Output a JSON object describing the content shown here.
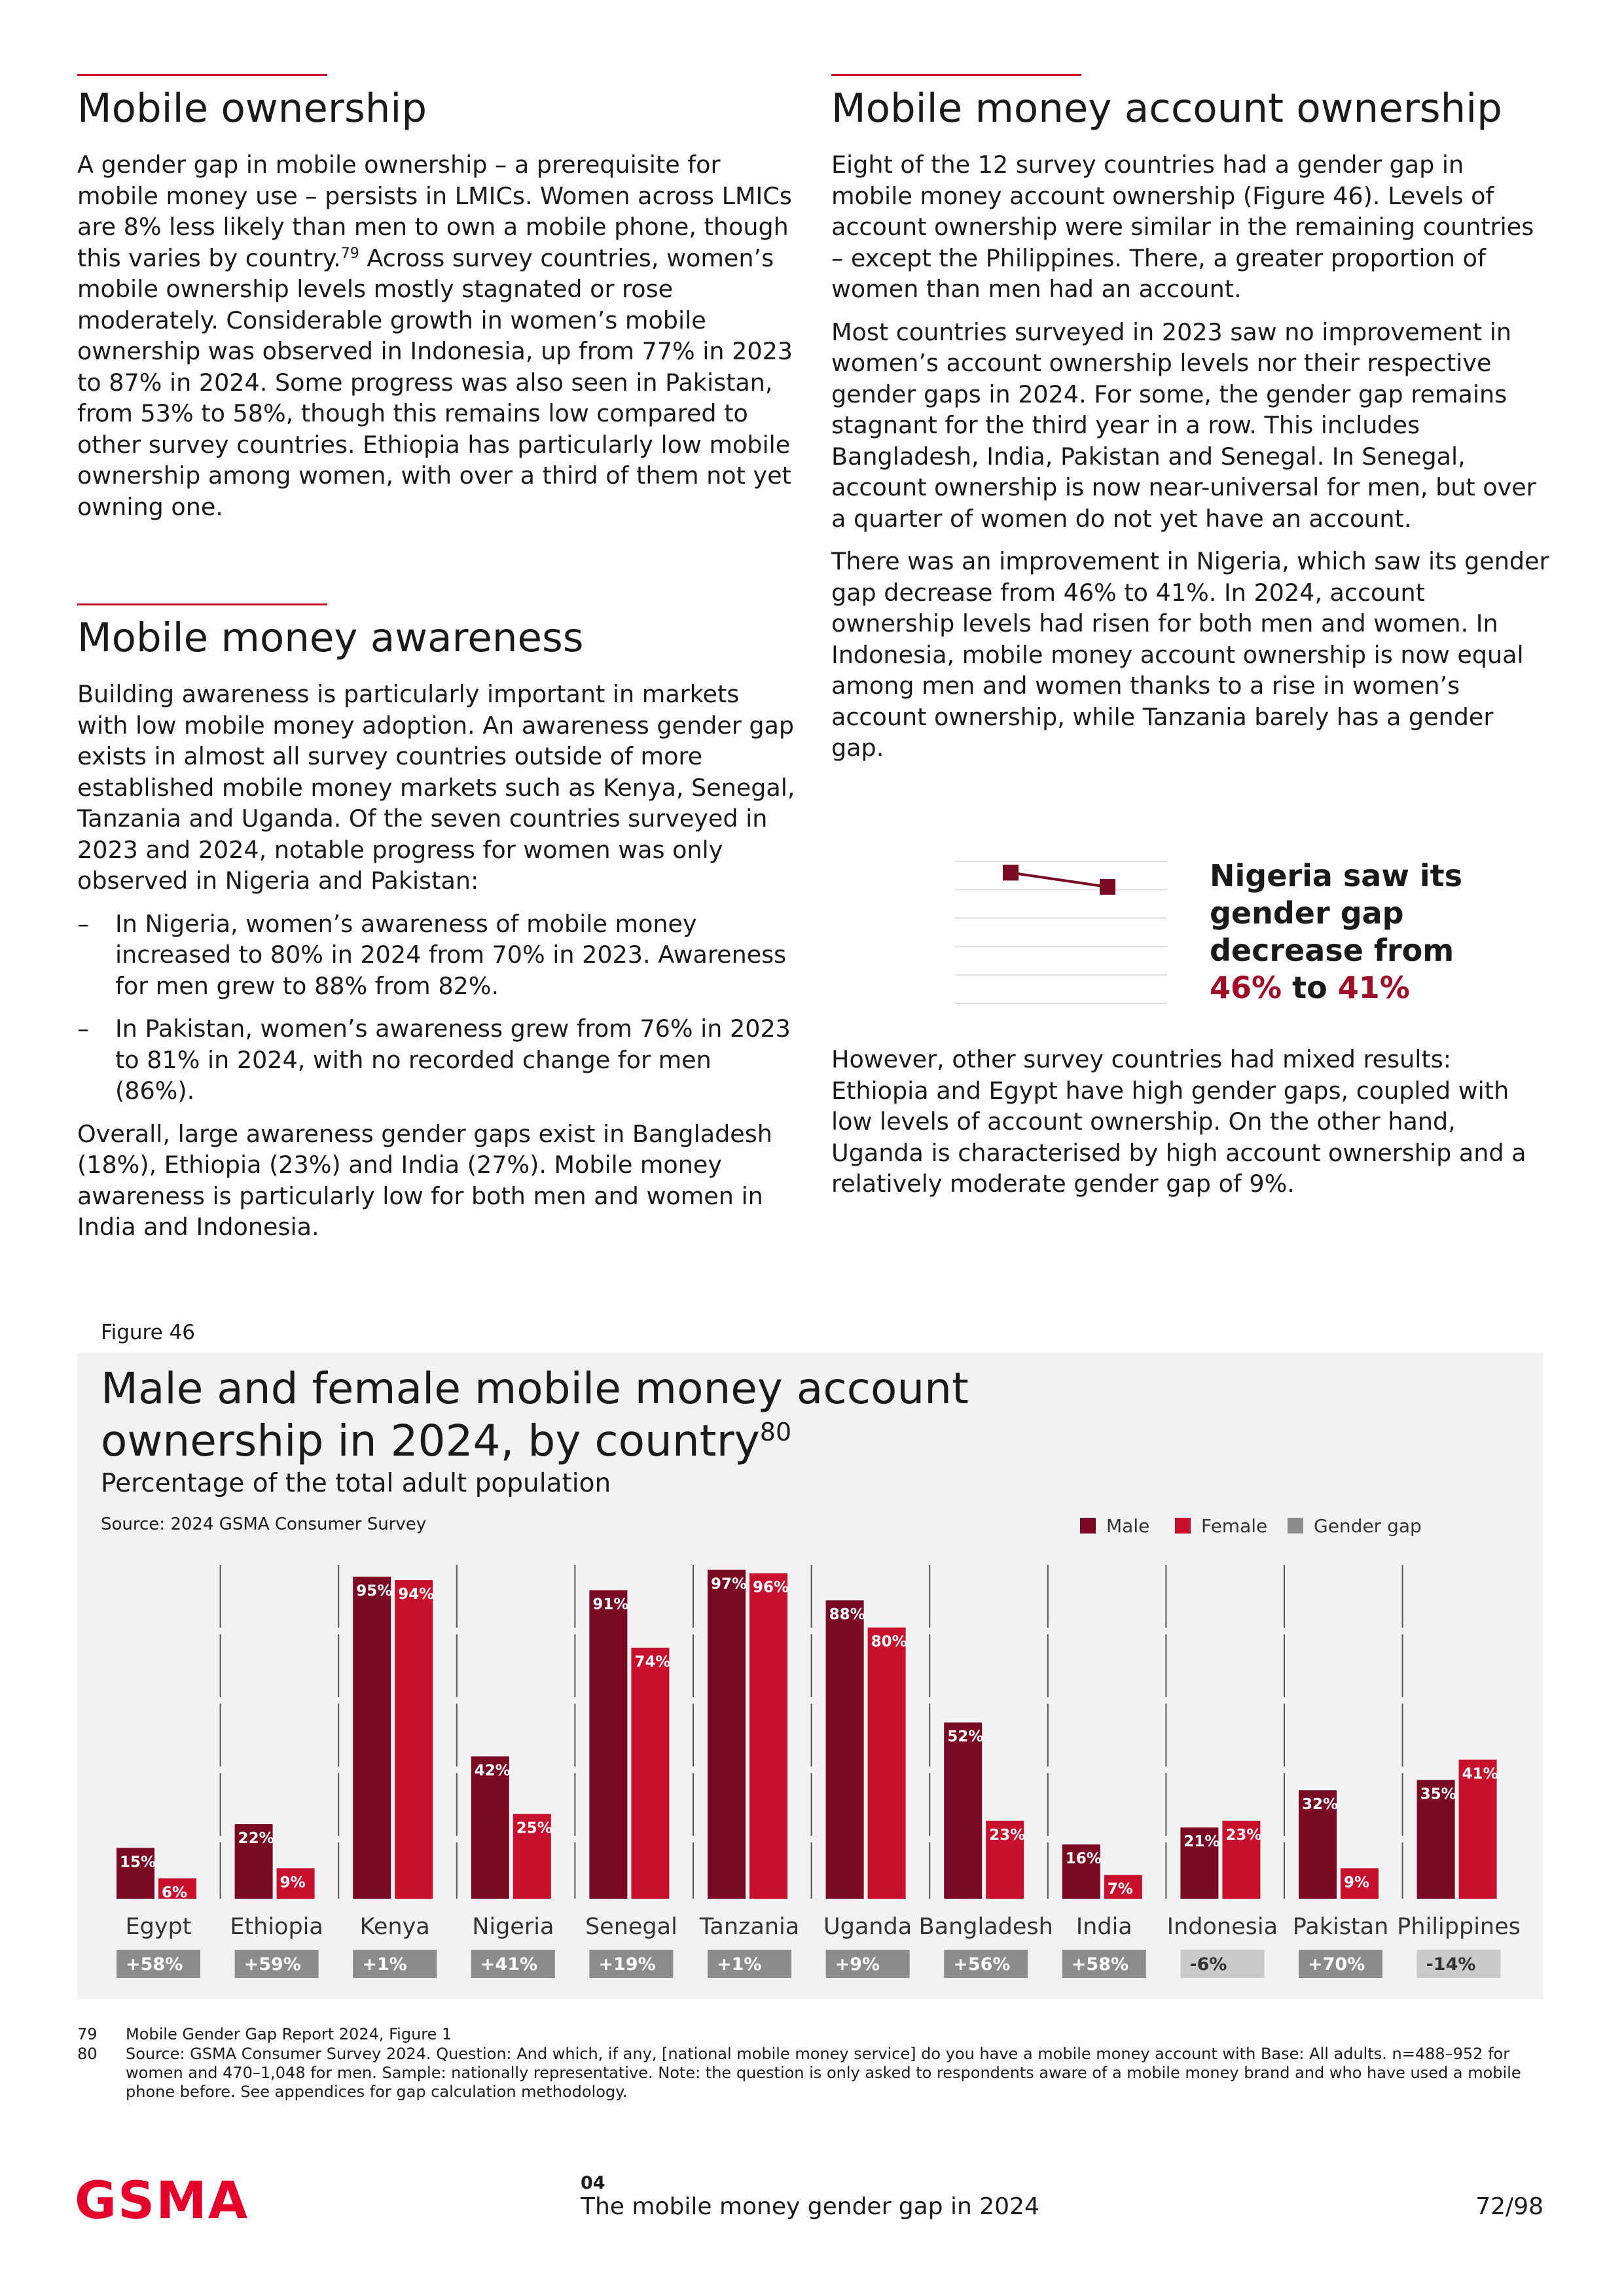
{
  "left": {
    "ownership": {
      "title": "Mobile ownership",
      "paragraph": {
        "before": "A gender gap in mobile ownership – a prerequisite for mobile money use – persists in LMICs. Women across LMICs are 8% less likely than men to own a mobile phone, though this varies by country.",
        "note": "79",
        "after": " Across survey countries, women’s mobile ownership levels mostly stagnated or rose moderately. Considerable growth in women’s mobile ownership was observed in Indonesia, up from 77% in 2023 to 87% in 2024. Some progress was also seen in Pakistan, from 53% to 58%, though this remains low compared to other survey countries. Ethiopia has particularly low mobile ownership among women, with over a third of them not yet owning one."
      }
    },
    "awareness": {
      "title": "Mobile money awareness",
      "intro": "Building awareness is particularly important in markets with low mobile money adoption. An awareness gender gap exists in almost all survey countries outside of more established mobile money markets such as Kenya, Senegal, Tanzania and Uganda. Of the seven countries surveyed in 2023 and 2024, notable progress for women was only observed in Nigeria and Pakistan:",
      "bullets": [
        "In Nigeria, women’s awareness of mobile money increased to 80% in 2024 from 70% in 2023. Awareness for men grew to 88% from 82%.",
        "In Pakistan, women’s awareness grew from 76% in 2023 to 81% in 2024, with no recorded change for men (86%)."
      ],
      "outro": "Overall, large awareness gender gaps exist in Bangladesh (18%), Ethiopia (23%) and India (27%). Mobile money awareness is particularly low for both men and women in India and Indonesia."
    }
  },
  "right": {
    "title": "Mobile money account ownership",
    "paragraphs": [
      "Eight of the 12 survey countries had a gender gap in mobile money account ownership (Figure 46). Levels of account ownership were similar in the remaining countries – except the Philippines. There, a greater proportion of women than men had an account.",
      "Most countries surveyed in 2023 saw no improvement in women’s account ownership levels nor their respective gender gaps in 2024. For some, the gender gap remains stagnant for the third year in a row. This includes Bangladesh, India, Pakistan and Senegal. In Senegal, account ownership is now near-universal for men, but over a quarter of women do not yet have an account.",
      "There was an improvement in Nigeria, which saw its gender gap decrease from 46% to 41%. In 2024, account ownership levels had risen for both men and women. In Indonesia, mobile money account ownership is now equal among men and women thanks to a rise in women’s account ownership, while Tanzania barely has a gender gap."
    ],
    "callout": {
      "text": "Nigeria saw its gender gap decrease from",
      "from": "46%",
      "joiner": "to",
      "to": "41%"
    },
    "closing": "However, other survey countries had mixed results: Ethiopia and Egypt have high gender gaps, coupled with low levels of account ownership. On the other hand, Uganda is characterised by high account ownership and a relatively moderate gender gap of 9%."
  },
  "figure_label": "Figure 46",
  "chart_data": [
    {
      "type": "bar",
      "title": "Male and female mobile money account ownership in 2024, by country",
      "title_note": "80",
      "subtitle": "Percentage of the total adult population",
      "source": "Source: 2024 GSMA Consumer Survey",
      "categories": [
        "Egypt",
        "Ethiopia",
        "Kenya",
        "Nigeria",
        "Senegal",
        "Tanzania",
        "Uganda",
        "Bangladesh",
        "India",
        "Indonesia",
        "Pakistan",
        "Philippines"
      ],
      "series": [
        {
          "name": "Male",
          "color": "#7a0a23",
          "values": [
            15,
            22,
            95,
            42,
            91,
            97,
            88,
            52,
            16,
            21,
            32,
            35
          ],
          "value_labels": [
            "15%",
            "22%",
            "95%",
            "42%",
            "91%",
            "97%",
            "88%",
            "52%",
            "16%",
            "21%",
            "32%",
            "35%"
          ]
        },
        {
          "name": "Female",
          "color": "#c8102e",
          "values": [
            6,
            9,
            94,
            25,
            74,
            96,
            80,
            23,
            7,
            23,
            9,
            41
          ],
          "value_labels": [
            "6%",
            "9%",
            "94%",
            "25%",
            "74%",
            "96%",
            "80%",
            "23%",
            "7%",
            "23%",
            "9%",
            "41%"
          ]
        },
        {
          "name": "Gender gap",
          "color": "#8c8c8c",
          "negative_color": "#c9cbca",
          "values": [
            58,
            59,
            1,
            41,
            19,
            1,
            9,
            56,
            58,
            -6,
            70,
            -14
          ],
          "value_labels": [
            "+58%",
            "+59%",
            "+1%",
            "+41%",
            "+19%",
            "+1%",
            "+9%",
            "+56%",
            "+58%",
            "-6%",
            "+70%",
            "-14%"
          ]
        }
      ],
      "ylim": [
        0,
        100
      ],
      "legend": "top-right"
    },
    {
      "type": "line",
      "categories": [
        null,
        null
      ],
      "values": [
        46,
        41
      ],
      "color": "#7a0a23",
      "ylim": [
        0,
        50
      ],
      "yticks": [
        0,
        10,
        20,
        30,
        40,
        50
      ],
      "grid": true
    }
  ],
  "footnotes": [
    {
      "number": "79",
      "text": "Mobile Gender Gap Report 2024, Figure 1"
    },
    {
      "number": "80",
      "text": "Source: GSMA Consumer Survey 2024. Question: And which, if any, [national mobile money service] do you have a mobile money account with Base: All adults. n=488–952 for women and 470–1,048 for men. Sample: nationally representative. Note: the question is only asked to respondents aware of a mobile money brand and who have used a mobile phone before. See appendices for gap calculation methodology."
    }
  ],
  "footer": {
    "logo": "GSMA",
    "chapter": "04",
    "report": "The mobile money gender gap in 2024",
    "page": "72/98"
  }
}
